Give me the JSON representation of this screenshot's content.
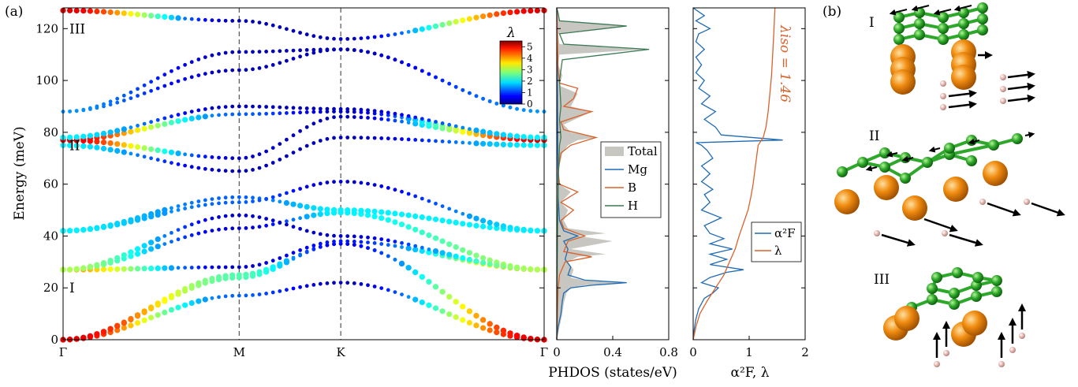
{
  "panel_labels": [
    "(a)",
    "(b)"
  ],
  "chart_data": [
    {
      "type": "scatter",
      "name": "phonon-dispersion",
      "ylabel": "Energy (meV)",
      "ylim": [
        0,
        128
      ],
      "yticks": [
        0,
        20,
        40,
        60,
        80,
        100,
        120
      ],
      "path_labels": [
        "Γ",
        "M",
        "K",
        "Γ"
      ],
      "path_positions": [
        0,
        1,
        1.577,
        2.732
      ],
      "vertical_dashed_at": [
        "M",
        "K"
      ],
      "mode_annotations": [
        {
          "text": "I",
          "energy": 20
        },
        {
          "text": "II",
          "energy": 75
        },
        {
          "text": "III",
          "energy": 120
        }
      ],
      "colorbar": {
        "symbol": "λ",
        "range": [
          0,
          5.5
        ],
        "ticks": [
          0,
          1,
          2,
          3,
          4,
          5
        ]
      },
      "nodes": [
        "Γ",
        "M",
        "K",
        "Γ"
      ],
      "branches": [
        {
          "energies": [
            0,
            17,
            22,
            0
          ],
          "lambda": [
            5,
            1.2,
            0.3,
            5
          ]
        },
        {
          "energies": [
            0,
            24,
            37,
            0
          ],
          "lambda": [
            5,
            2.5,
            0.6,
            5
          ]
        },
        {
          "energies": [
            0,
            25,
            37,
            0
          ],
          "lambda": [
            5,
            2.5,
            0.6,
            5
          ]
        },
        {
          "energies": [
            27,
            28,
            38,
            27
          ],
          "lambda": [
            4,
            0.4,
            0.8,
            4
          ]
        },
        {
          "energies": [
            27,
            43,
            49,
            27
          ],
          "lambda": [
            3,
            0.4,
            2.0,
            3
          ]
        },
        {
          "energies": [
            27,
            48,
            40,
            27
          ],
          "lambda": [
            3,
            0.4,
            0.4,
            3
          ]
        },
        {
          "energies": [
            42,
            55,
            50,
            42
          ],
          "lambda": [
            2,
            1.2,
            2.0,
            2
          ]
        },
        {
          "energies": [
            42,
            53,
            61,
            42
          ],
          "lambda": [
            2,
            1.2,
            0.4,
            2
          ]
        },
        {
          "energies": [
            75,
            65,
            78,
            75
          ],
          "lambda": [
            2,
            0.3,
            0.3,
            2
          ]
        },
        {
          "energies": [
            77,
            70,
            86,
            77
          ],
          "lambda": [
            5,
            0.4,
            0.3,
            5
          ]
        },
        {
          "energies": [
            77,
            87,
            88,
            77
          ],
          "lambda": [
            5,
            1.2,
            0.4,
            5
          ]
        },
        {
          "energies": [
            78,
            90,
            89,
            78
          ],
          "lambda": [
            2,
            0.3,
            0.3,
            2
          ]
        },
        {
          "energies": [
            88,
            104,
            112,
            88
          ],
          "lambda": [
            1.5,
            0.3,
            0.3,
            1.5
          ]
        },
        {
          "energies": [
            88,
            111,
            112,
            88
          ],
          "lambda": [
            1.5,
            0.3,
            0.3,
            1.5
          ]
        },
        {
          "energies": [
            127,
            123,
            116,
            127
          ],
          "lambda": [
            5,
            0.3,
            0.3,
            5
          ]
        }
      ]
    },
    {
      "type": "line",
      "name": "phdos",
      "xlabel": "PHDOS (states/eV)",
      "xlim": [
        0,
        0.8
      ],
      "xticks": [
        0,
        0.4,
        0.8
      ],
      "ylim": [
        0,
        128
      ],
      "legend_placement": "center",
      "series": [
        {
          "name": "Total",
          "color": "#c8c6c0",
          "points": [
            [
              0,
              0
            ],
            [
              0.02,
              5
            ],
            [
              0.04,
              10
            ],
            [
              0.05,
              14
            ],
            [
              0.07,
              18
            ],
            [
              0.1,
              20
            ],
            [
              0.2,
              21
            ],
            [
              0.5,
              22
            ],
            [
              0.2,
              22.8
            ],
            [
              0.1,
              24
            ],
            [
              0.12,
              27
            ],
            [
              0.08,
              30
            ],
            [
              0.15,
              32
            ],
            [
              0.35,
              33
            ],
            [
              0.1,
              35
            ],
            [
              0.4,
              38
            ],
            [
              0.15,
              40
            ],
            [
              0.35,
              41
            ],
            [
              0.08,
              43
            ],
            [
              0.05,
              46
            ],
            [
              0.08,
              50
            ],
            [
              0.03,
              53
            ],
            [
              0.1,
              57
            ],
            [
              0.02,
              60
            ],
            [
              0.01,
              65
            ],
            [
              0.04,
              72
            ],
            [
              0.08,
              75
            ],
            [
              0.15,
              77
            ],
            [
              0.3,
              78
            ],
            [
              0.1,
              80
            ],
            [
              0.05,
              83
            ],
            [
              0.25,
              88
            ],
            [
              0.1,
              90
            ],
            [
              0.15,
              95
            ],
            [
              0.02,
              98
            ],
            [
              0.04,
              102
            ],
            [
              0.01,
              106
            ],
            [
              0.02,
              110
            ],
            [
              0.66,
              112
            ],
            [
              0.02,
              114
            ],
            [
              0.01,
              118
            ],
            [
              0.5,
              121
            ],
            [
              0.02,
              123
            ],
            [
              0.01,
              126
            ],
            [
              0,
              128
            ]
          ]
        },
        {
          "name": "Mg",
          "color": "#1f6bb4",
          "points": [
            [
              0,
              0
            ],
            [
              0.01,
              5
            ],
            [
              0.03,
              10
            ],
            [
              0.04,
              15
            ],
            [
              0.05,
              18
            ],
            [
              0.1,
              20
            ],
            [
              0.25,
              21
            ],
            [
              0.5,
              22
            ],
            [
              0.2,
              23
            ],
            [
              0.08,
              25
            ],
            [
              0.1,
              28
            ],
            [
              0.06,
              31
            ],
            [
              0.08,
              35
            ],
            [
              0.05,
              38
            ],
            [
              0.15,
              40
            ],
            [
              0.05,
              42
            ],
            [
              0.02,
              46
            ],
            [
              0.01,
              55
            ],
            [
              0,
              128
            ]
          ]
        },
        {
          "name": "B",
          "color": "#d9622b",
          "points": [
            [
              0,
              0
            ],
            [
              0.005,
              10
            ],
            [
              0.01,
              20
            ],
            [
              0.02,
              25
            ],
            [
              0.06,
              30
            ],
            [
              0.25,
              32
            ],
            [
              0.05,
              34
            ],
            [
              0.08,
              38
            ],
            [
              0.2,
              40
            ],
            [
              0.05,
              43
            ],
            [
              0.03,
              46
            ],
            [
              0.12,
              50
            ],
            [
              0.03,
              53
            ],
            [
              0.15,
              57
            ],
            [
              0.02,
              60
            ],
            [
              0.01,
              65
            ],
            [
              0.03,
              72
            ],
            [
              0.1,
              75
            ],
            [
              0.22,
              77
            ],
            [
              0.28,
              78
            ],
            [
              0.05,
              81
            ],
            [
              0.03,
              84
            ],
            [
              0.25,
              88
            ],
            [
              0.05,
              90
            ],
            [
              0.12,
              93
            ],
            [
              0.15,
              97
            ],
            [
              0.02,
              99
            ],
            [
              0.01,
              104
            ],
            [
              0.005,
              115
            ],
            [
              0,
              128
            ]
          ]
        },
        {
          "name": "H",
          "color": "#3a7a55",
          "points": [
            [
              0,
              0
            ],
            [
              0.002,
              20
            ],
            [
              0.005,
              40
            ],
            [
              0.01,
              60
            ],
            [
              0.02,
              75
            ],
            [
              0.03,
              78
            ],
            [
              0.02,
              85
            ],
            [
              0.03,
              90
            ],
            [
              0.02,
              100
            ],
            [
              0.04,
              108
            ],
            [
              0.66,
              112
            ],
            [
              0.05,
              114
            ],
            [
              0.02,
              118
            ],
            [
              0.5,
              121
            ],
            [
              0.02,
              123
            ],
            [
              0.01,
              126
            ],
            [
              0,
              128
            ]
          ]
        }
      ]
    },
    {
      "type": "line",
      "name": "eliashberg",
      "xlabel": "α²F, λ",
      "xlim": [
        0,
        2
      ],
      "xticks": [
        0,
        1,
        2
      ],
      "ylim": [
        0,
        128
      ],
      "legend_placement": "lower-right",
      "annotation": "λiso = 1.46",
      "series": [
        {
          "name": "α²F",
          "color": "#1f6bb4",
          "points": [
            [
              0,
              0
            ],
            [
              0.02,
              4
            ],
            [
              0.05,
              8
            ],
            [
              0.1,
              12
            ],
            [
              0.2,
              16
            ],
            [
              0.35,
              18
            ],
            [
              0.45,
              20
            ],
            [
              0.15,
              22
            ],
            [
              0.3,
              24
            ],
            [
              0.6,
              26
            ],
            [
              0.9,
              27
            ],
            [
              0.3,
              29
            ],
            [
              0.6,
              31
            ],
            [
              0.3,
              33
            ],
            [
              0.7,
              35
            ],
            [
              0.3,
              37
            ],
            [
              0.55,
              39
            ],
            [
              0.3,
              41
            ],
            [
              0.2,
              44
            ],
            [
              0.5,
              47
            ],
            [
              0.15,
              50
            ],
            [
              0.3,
              53
            ],
            [
              0.2,
              56
            ],
            [
              0.35,
              58
            ],
            [
              0.15,
              61
            ],
            [
              0.3,
              64
            ],
            [
              0.15,
              67
            ],
            [
              0.35,
              70
            ],
            [
              0.25,
              73
            ],
            [
              0.15,
              75
            ],
            [
              0.05,
              76
            ],
            [
              1.6,
              77
            ],
            [
              0.5,
              79
            ],
            [
              0.4,
              82
            ],
            [
              0.2,
              85
            ],
            [
              0.4,
              88
            ],
            [
              0.15,
              91
            ],
            [
              0.3,
              94
            ],
            [
              0.1,
              97
            ],
            [
              0.2,
              100
            ],
            [
              0.05,
              103
            ],
            [
              0.15,
              106
            ],
            [
              0.05,
              109
            ],
            [
              0.2,
              112
            ],
            [
              0.05,
              115
            ],
            [
              0.1,
              118
            ],
            [
              0.3,
              120
            ],
            [
              0.05,
              123
            ],
            [
              0.2,
              125
            ],
            [
              0,
              128
            ]
          ]
        },
        {
          "name": "λ",
          "color": "#d9622b",
          "points": [
            [
              0,
              0
            ],
            [
              0.05,
              5
            ],
            [
              0.12,
              10
            ],
            [
              0.25,
              15
            ],
            [
              0.4,
              20
            ],
            [
              0.55,
              25
            ],
            [
              0.65,
              30
            ],
            [
              0.75,
              35
            ],
            [
              0.82,
              40
            ],
            [
              0.9,
              45
            ],
            [
              0.98,
              50
            ],
            [
              1.03,
              55
            ],
            [
              1.07,
              60
            ],
            [
              1.1,
              65
            ],
            [
              1.13,
              70
            ],
            [
              1.16,
              75
            ],
            [
              1.25,
              78
            ],
            [
              1.3,
              82
            ],
            [
              1.34,
              88
            ],
            [
              1.37,
              95
            ],
            [
              1.4,
              102
            ],
            [
              1.42,
              110
            ],
            [
              1.44,
              118
            ],
            [
              1.46,
              128
            ]
          ]
        }
      ]
    }
  ],
  "panel_b": {
    "modes": [
      {
        "label": "I"
      },
      {
        "label": "II"
      },
      {
        "label": "III"
      }
    ],
    "colors": {
      "boron": "#2ea82a",
      "magnesium": "#f08c10",
      "hydrogen": "#e7b8b0",
      "arrow": "#000000"
    }
  }
}
